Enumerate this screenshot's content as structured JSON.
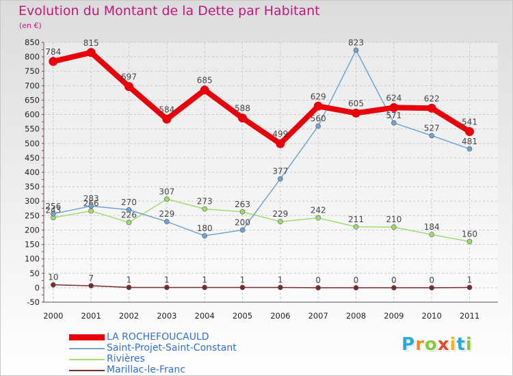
{
  "title": "Evolution du Montant de la Dette par Habitant",
  "unit": "(en €)",
  "logo": {
    "letters": [
      "P",
      "r",
      "o",
      "x",
      "i",
      "t",
      "i"
    ],
    "colors": [
      "#2aa8d8",
      "#f08a1c",
      "#8cc63f",
      "#e8482d",
      "#f2b417",
      "#2aa8d8",
      "#8cc63f"
    ]
  },
  "chart_data": {
    "type": "line",
    "x": [
      "2000",
      "2001",
      "2002",
      "2003",
      "2004",
      "2005",
      "2006",
      "2007",
      "2008",
      "2009",
      "2010",
      "2011"
    ],
    "ylim": [
      -50,
      850
    ],
    "yticks": [
      -50,
      0,
      50,
      100,
      150,
      200,
      250,
      300,
      350,
      400,
      450,
      500,
      550,
      600,
      650,
      700,
      750,
      800,
      850
    ],
    "grid": true,
    "legend_position": "bottom-left",
    "series": [
      {
        "name": "Marillac-le-Franc",
        "color": "#7a2a2a",
        "values": [
          10,
          7,
          1,
          1,
          1,
          1,
          1,
          0,
          0,
          0,
          0,
          1
        ],
        "labels": [
          "10",
          "7",
          "1",
          "1",
          "1",
          "1",
          "1",
          "0",
          "0",
          "0",
          "0",
          "1"
        ]
      },
      {
        "name": "Rivières",
        "color": "#9fdb6e",
        "values": [
          243,
          266,
          226,
          307,
          273,
          263,
          229,
          242,
          211,
          210,
          184,
          160
        ],
        "labels": [
          "243",
          "266",
          "226",
          "307",
          "273",
          "263",
          "229",
          "242",
          "211",
          "210",
          "184",
          "160"
        ]
      },
      {
        "name": "Saint-Projet-Saint-Constant",
        "color": "#6fa3d0",
        "values": [
          256,
          283,
          270,
          229,
          180,
          200,
          377,
          560,
          823,
          571,
          527,
          481
        ],
        "labels": [
          "256",
          "283",
          "270",
          "229",
          "180",
          "200",
          "377",
          "560",
          "823",
          "571",
          "527",
          "481"
        ]
      },
      {
        "name": "LA ROCHEFOUCAULD",
        "color": "#e8000b",
        "values": [
          784,
          815,
          697,
          584,
          685,
          588,
          499,
          629,
          605,
          624,
          622,
          541
        ],
        "labels": [
          "784",
          "815",
          "697",
          "584",
          "685",
          "588",
          "499",
          "629",
          "605",
          "624",
          "622",
          "541"
        ]
      }
    ]
  },
  "legend": [
    {
      "label": "LA ROCHEFOUCAULD",
      "color": "#e8000b"
    },
    {
      "label": "Saint-Projet-Saint-Constant",
      "color": "#6fa3d0"
    },
    {
      "label": "Rivières",
      "color": "#9fdb6e"
    },
    {
      "label": "Marillac-le-Franc",
      "color": "#7a2a2a"
    }
  ]
}
